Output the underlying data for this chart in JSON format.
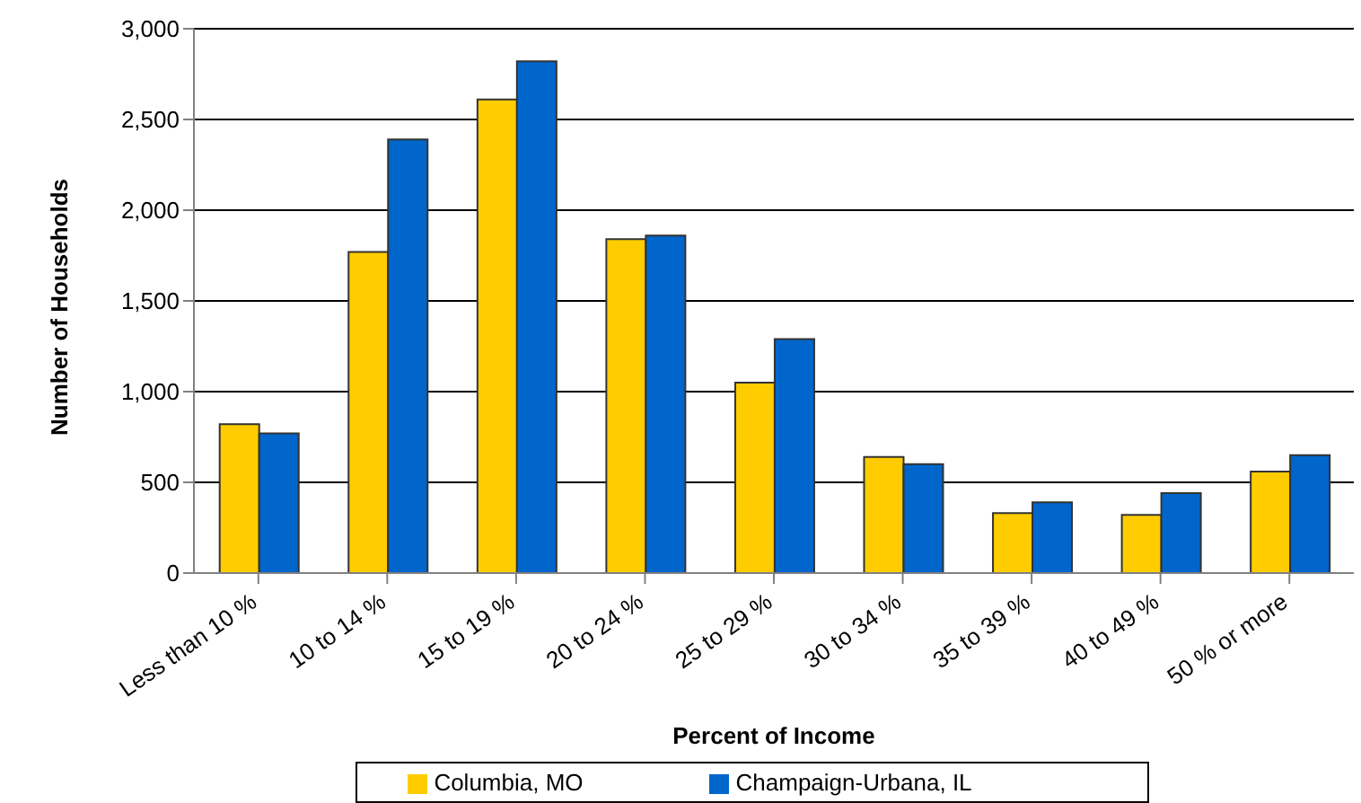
{
  "chart_data": {
    "type": "bar",
    "xlabel": "Percent of Income",
    "ylabel": "Number of Households",
    "categories": [
      "Less than 10 %",
      "10 to 14 %",
      "15 to 19 %",
      "20 to 24 %",
      "25 to 29 %",
      "30 to 34 %",
      "35 to 39 %",
      "40 to 49 %",
      "50 % or more"
    ],
    "series": [
      {
        "name": "Columbia, MO",
        "color": "#ffcc00",
        "values": [
          820,
          1770,
          2610,
          1840,
          1050,
          640,
          330,
          320,
          560
        ]
      },
      {
        "name": "Champaign-Urbana, IL",
        "color": "#0066cc",
        "values": [
          770,
          2390,
          2820,
          1860,
          1290,
          600,
          390,
          440,
          650
        ]
      }
    ],
    "ylim": [
      0,
      3000
    ],
    "yticks": [
      0,
      500,
      {
        "value": 1000,
        "label": "1,000"
      },
      {
        "value": 1500,
        "label": "1,500"
      },
      {
        "value": 2000,
        "label": "2,000"
      },
      {
        "value": 2500,
        "label": "2,500"
      },
      {
        "value": 3000,
        "label": "3,000"
      }
    ],
    "grid": "y",
    "legend": "bottom"
  }
}
